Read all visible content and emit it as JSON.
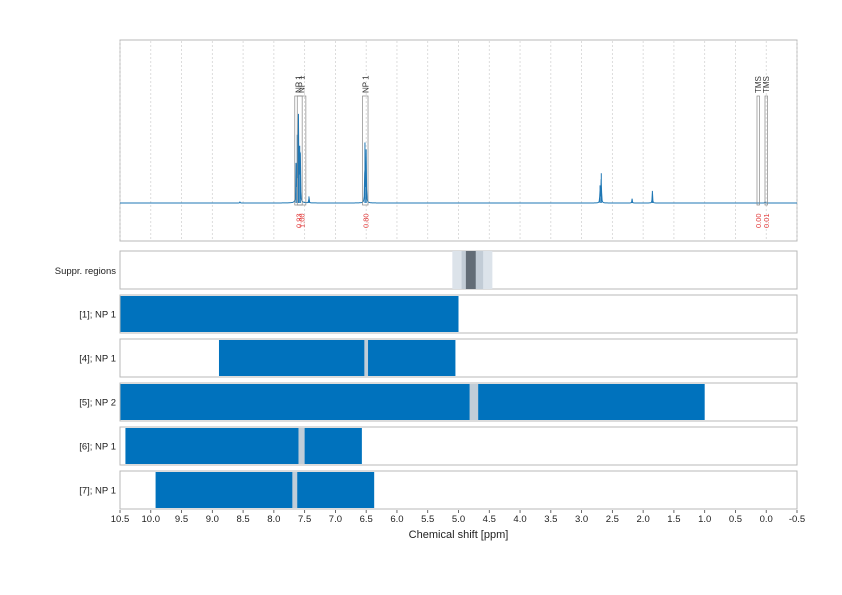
{
  "chart_data": {
    "type": "nmr-spectrum-with-range-tracks",
    "xlabel": "Chemical shift [ppm]",
    "xlim": [
      10.5,
      -0.5
    ],
    "x_reversed": true,
    "ticks": [
      "10.5",
      "10.0",
      "9.5",
      "9.0",
      "8.5",
      "8.0",
      "7.5",
      "7.0",
      "6.5",
      "6.0",
      "5.5",
      "5.0",
      "4.5",
      "4.0",
      "3.5",
      "3.0",
      "2.5",
      "2.0",
      "1.5",
      "1.0",
      "0.5",
      "0.0",
      "-0.5"
    ],
    "spectrum": {
      "color": "#1f77b4",
      "peaks": [
        {
          "ppm": 7.62,
          "height": 0.62
        },
        {
          "ppm": 7.6,
          "height": 0.78
        },
        {
          "ppm": 7.58,
          "height": 0.52
        },
        {
          "ppm": 7.57,
          "height": 0.38
        },
        {
          "ppm": 7.64,
          "height": 0.33
        },
        {
          "ppm": 7.43,
          "height": 0.06
        },
        {
          "ppm": 6.52,
          "height": 0.55
        },
        {
          "ppm": 6.5,
          "height": 0.48
        },
        {
          "ppm": 2.68,
          "height": 0.27
        },
        {
          "ppm": 2.7,
          "height": 0.16
        },
        {
          "ppm": 2.18,
          "height": 0.04
        },
        {
          "ppm": 1.85,
          "height": 0.11
        },
        {
          "ppm": 8.55,
          "height": 0.01
        },
        {
          "ppm": 0.02,
          "height": 0.01
        }
      ]
    },
    "annotations": [
      {
        "label": "NP 1",
        "from": 7.66,
        "to": 7.54,
        "integral": "0.93"
      },
      {
        "label": "NP 1",
        "from": 7.62,
        "to": 7.48,
        "integral": "1.00"
      },
      {
        "label": "NP 1",
        "from": 6.56,
        "to": 6.47,
        "integral": "0.80"
      },
      {
        "label": "TMS",
        "from": 0.15,
        "to": 0.11,
        "integral": "0.00"
      },
      {
        "label": "TMS",
        "from": 0.02,
        "to": -0.02,
        "integral": "0.01"
      }
    ],
    "suppression": {
      "label": "Suppr. regions",
      "regions": [
        {
          "from": 5.1,
          "to": 4.45,
          "color": "#dce3ea"
        },
        {
          "from": 4.95,
          "to": 4.6,
          "color": "#c2ccd6"
        },
        {
          "from": 4.88,
          "to": 4.72,
          "color": "#626c76"
        }
      ]
    },
    "tracks": [
      {
        "label": "[1]; NP 1",
        "ranges": [
          [
            10.5,
            5.0
          ]
        ],
        "gaps": []
      },
      {
        "label": "[4]; NP 1",
        "ranges": [
          [
            8.9,
            5.05
          ]
        ],
        "gaps": [
          [
            6.53,
            6.47
          ]
        ]
      },
      {
        "label": "[5]; NP 2",
        "ranges": [
          [
            10.5,
            1.0
          ]
        ],
        "gaps": [
          [
            4.82,
            4.68
          ]
        ]
      },
      {
        "label": "[6]; NP 1",
        "ranges": [
          [
            10.42,
            6.57
          ]
        ],
        "gaps": [
          [
            7.6,
            7.5
          ]
        ]
      },
      {
        "label": "[7]; NP 1",
        "ranges": [
          [
            9.93,
            6.37
          ]
        ],
        "gaps": [
          [
            7.7,
            7.62
          ]
        ]
      }
    ]
  }
}
